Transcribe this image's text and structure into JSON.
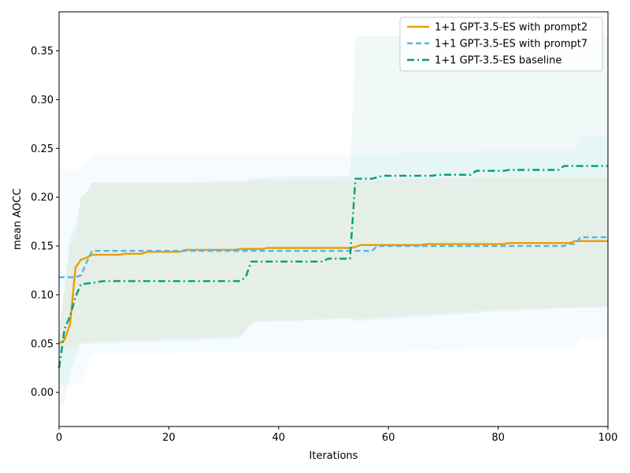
{
  "chart_data": {
    "type": "line",
    "xlabel": "Iterations",
    "ylabel": "mean AOCC",
    "xlim": [
      0,
      100
    ],
    "ylim": [
      -0.035,
      0.39
    ],
    "x_ticks": [
      0,
      20,
      40,
      60,
      80,
      100
    ],
    "y_ticks": [
      0.0,
      0.05,
      0.1,
      0.15,
      0.2,
      0.25,
      0.3,
      0.35
    ],
    "x_tick_labels": [
      "0",
      "20",
      "40",
      "60",
      "80",
      "100"
    ],
    "y_tick_labels": [
      "0.00",
      "0.05",
      "0.10",
      "0.15",
      "0.20",
      "0.25",
      "0.30",
      "0.35"
    ],
    "grid": false,
    "legend_position": "top-right",
    "series": [
      {
        "name": "1+1 GPT-3.5-ES with prompt2",
        "color": "#E69F00",
        "dash": "solid",
        "points": [
          [
            0,
            0.05
          ],
          [
            1,
            0.054
          ],
          [
            2,
            0.07
          ],
          [
            3,
            0.128
          ],
          [
            4,
            0.136
          ],
          [
            5,
            0.138
          ],
          [
            6,
            0.141
          ],
          [
            8,
            0.141
          ],
          [
            11,
            0.141
          ],
          [
            12,
            0.142
          ],
          [
            15,
            0.142
          ],
          [
            16,
            0.144
          ],
          [
            22,
            0.144
          ],
          [
            23,
            0.146
          ],
          [
            32,
            0.146
          ],
          [
            33,
            0.147
          ],
          [
            37,
            0.147
          ],
          [
            38,
            0.148
          ],
          [
            53,
            0.148
          ],
          [
            54,
            0.149
          ],
          [
            55,
            0.151
          ],
          [
            66,
            0.151
          ],
          [
            67,
            0.152
          ],
          [
            81,
            0.152
          ],
          [
            82,
            0.153
          ],
          [
            93,
            0.153
          ],
          [
            94,
            0.155
          ],
          [
            100,
            0.155
          ]
        ],
        "band": {
          "color": "#E69F00",
          "upper": [
            [
              0,
              0.06
            ],
            [
              2,
              0.15
            ],
            [
              3,
              0.16
            ],
            [
              4,
              0.2
            ],
            [
              5,
              0.205
            ],
            [
              6,
              0.215
            ],
            [
              20,
              0.215
            ],
            [
              30,
              0.217
            ],
            [
              60,
              0.218
            ],
            [
              80,
              0.22
            ],
            [
              100,
              0.22
            ]
          ],
          "lower": [
            [
              0,
              0.04
            ],
            [
              2,
              0.045
            ],
            [
              4,
              0.05
            ],
            [
              6,
              0.052
            ],
            [
              20,
              0.055
            ],
            [
              33,
              0.058
            ],
            [
              36,
              0.073
            ],
            [
              50,
              0.076
            ],
            [
              54,
              0.075
            ],
            [
              60,
              0.078
            ],
            [
              80,
              0.085
            ],
            [
              100,
              0.088
            ]
          ]
        }
      },
      {
        "name": "1+1 GPT-3.5-ES with prompt7",
        "color": "#56B4E9",
        "dash": "dashed",
        "points": [
          [
            0,
            0.118
          ],
          [
            3,
            0.118
          ],
          [
            4,
            0.12
          ],
          [
            5,
            0.133
          ],
          [
            6,
            0.145
          ],
          [
            20,
            0.145
          ],
          [
            30,
            0.145
          ],
          [
            57,
            0.145
          ],
          [
            58,
            0.15
          ],
          [
            92,
            0.15
          ],
          [
            93,
            0.152
          ],
          [
            94,
            0.152
          ],
          [
            95,
            0.159
          ],
          [
            100,
            0.159
          ]
        ],
        "band": {
          "color": "#56B4E9",
          "upper": [
            [
              0,
              0.228
            ],
            [
              4,
              0.228
            ],
            [
              6,
              0.245
            ],
            [
              60,
              0.245
            ],
            [
              80,
              0.248
            ],
            [
              94,
              0.248
            ],
            [
              95,
              0.262
            ],
            [
              100,
              0.262
            ]
          ],
          "lower": [
            [
              0,
              0.008
            ],
            [
              4,
              0.008
            ],
            [
              6,
              0.04
            ],
            [
              20,
              0.04
            ],
            [
              40,
              0.042
            ],
            [
              60,
              0.042
            ],
            [
              80,
              0.045
            ],
            [
              94,
              0.045
            ],
            [
              95,
              0.055
            ],
            [
              100,
              0.055
            ]
          ]
        }
      },
      {
        "name": "1+1 GPT-3.5-ES baseline",
        "color": "#009E73",
        "dash": "dashdot",
        "points": [
          [
            0,
            0.025
          ],
          [
            1,
            0.065
          ],
          [
            2,
            0.078
          ],
          [
            3,
            0.098
          ],
          [
            4,
            0.111
          ],
          [
            6,
            0.112
          ],
          [
            7,
            0.113
          ],
          [
            8,
            0.114
          ],
          [
            33,
            0.114
          ],
          [
            34,
            0.118
          ],
          [
            35,
            0.134
          ],
          [
            48,
            0.134
          ],
          [
            49,
            0.137
          ],
          [
            53,
            0.137
          ],
          [
            54,
            0.219
          ],
          [
            57,
            0.219
          ],
          [
            59,
            0.222
          ],
          [
            68,
            0.222
          ],
          [
            69,
            0.223
          ],
          [
            75,
            0.223
          ],
          [
            76,
            0.227
          ],
          [
            81,
            0.227
          ],
          [
            82,
            0.228
          ],
          [
            91,
            0.228
          ],
          [
            92,
            0.232
          ],
          [
            100,
            0.232
          ]
        ],
        "band": {
          "color": "#009E73",
          "upper": [
            [
              0,
              0.06
            ],
            [
              2,
              0.16
            ],
            [
              3,
              0.17
            ],
            [
              4,
              0.2
            ],
            [
              5,
              0.205
            ],
            [
              6,
              0.215
            ],
            [
              34,
              0.215
            ],
            [
              35,
              0.22
            ],
            [
              53,
              0.222
            ],
            [
              54,
              0.365
            ],
            [
              100,
              0.365
            ]
          ],
          "lower": [
            [
              0,
              -0.02
            ],
            [
              1,
              -0.01
            ],
            [
              2,
              0.02
            ],
            [
              4,
              0.05
            ],
            [
              6,
              0.05
            ],
            [
              33,
              0.055
            ],
            [
              35,
              0.072
            ],
            [
              48,
              0.074
            ],
            [
              53,
              0.076
            ],
            [
              54,
              0.073
            ],
            [
              60,
              0.075
            ],
            [
              80,
              0.083
            ],
            [
              95,
              0.087
            ],
            [
              100,
              0.087
            ]
          ]
        }
      }
    ]
  }
}
